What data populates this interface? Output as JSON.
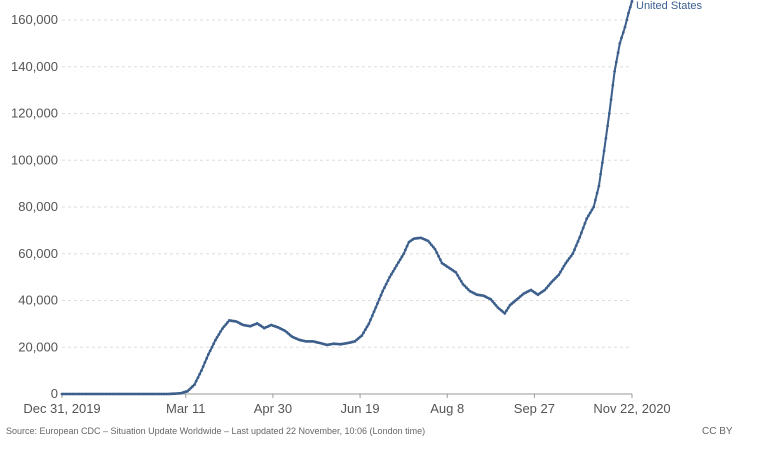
{
  "colors": {
    "series": "#3d5f8c",
    "grid": "#dddddd",
    "axis": "#999999"
  },
  "chart_data": {
    "type": "line",
    "grid": true,
    "ylim": [
      0,
      160000
    ],
    "xlim": [
      "2019-12-31",
      "2020-11-22"
    ],
    "y_ticks": [
      0,
      20000,
      40000,
      60000,
      80000,
      100000,
      120000,
      140000,
      160000
    ],
    "y_tick_labels": [
      "0",
      "20,000",
      "40,000",
      "60,000",
      "80,000",
      "100,000",
      "120,000",
      "140,000",
      "160,000"
    ],
    "x_ticks": [
      "2019-12-31",
      "2020-03-11",
      "2020-04-30",
      "2020-06-19",
      "2020-08-08",
      "2020-09-27",
      "2020-11-22"
    ],
    "x_tick_labels": [
      "Dec 31, 2019",
      "Mar 11",
      "Apr 30",
      "Jun 19",
      "Aug 8",
      "Sep 27",
      "Nov 22, 2020"
    ],
    "series": [
      {
        "name": "United States",
        "points": [
          [
            "2019-12-31",
            0
          ],
          [
            "2020-01-20",
            0
          ],
          [
            "2020-02-15",
            0
          ],
          [
            "2020-03-01",
            0
          ],
          [
            "2020-03-08",
            300
          ],
          [
            "2020-03-12",
            1200
          ],
          [
            "2020-03-16",
            4000
          ],
          [
            "2020-03-20",
            10000
          ],
          [
            "2020-03-24",
            17000
          ],
          [
            "2020-03-28",
            23000
          ],
          [
            "2020-04-01",
            28000
          ],
          [
            "2020-04-05",
            31500
          ],
          [
            "2020-04-09",
            31000
          ],
          [
            "2020-04-13",
            29500
          ],
          [
            "2020-04-17",
            29000
          ],
          [
            "2020-04-21",
            30200
          ],
          [
            "2020-04-25",
            28200
          ],
          [
            "2020-04-29",
            29500
          ],
          [
            "2020-05-03",
            28500
          ],
          [
            "2020-05-07",
            27000
          ],
          [
            "2020-05-11",
            24500
          ],
          [
            "2020-05-15",
            23200
          ],
          [
            "2020-05-19",
            22500
          ],
          [
            "2020-05-23",
            22500
          ],
          [
            "2020-05-27",
            21800
          ],
          [
            "2020-05-31",
            21000
          ],
          [
            "2020-06-04",
            21500
          ],
          [
            "2020-06-08",
            21300
          ],
          [
            "2020-06-12",
            21800
          ],
          [
            "2020-06-16",
            22500
          ],
          [
            "2020-06-20",
            25000
          ],
          [
            "2020-06-24",
            30000
          ],
          [
            "2020-06-28",
            37000
          ],
          [
            "2020-07-02",
            44000
          ],
          [
            "2020-07-06",
            50000
          ],
          [
            "2020-07-10",
            55000
          ],
          [
            "2020-07-14",
            60000
          ],
          [
            "2020-07-17",
            65000
          ],
          [
            "2020-07-20",
            66500
          ],
          [
            "2020-07-24",
            66800
          ],
          [
            "2020-07-28",
            65500
          ],
          [
            "2020-08-01",
            62000
          ],
          [
            "2020-08-05",
            56000
          ],
          [
            "2020-08-09",
            54000
          ],
          [
            "2020-08-13",
            52000
          ],
          [
            "2020-08-17",
            47000
          ],
          [
            "2020-08-21",
            44000
          ],
          [
            "2020-08-25",
            42500
          ],
          [
            "2020-08-29",
            42000
          ],
          [
            "2020-09-02",
            40500
          ],
          [
            "2020-09-06",
            37000
          ],
          [
            "2020-09-10",
            34500
          ],
          [
            "2020-09-13",
            38000
          ],
          [
            "2020-09-17",
            40500
          ],
          [
            "2020-09-21",
            43000
          ],
          [
            "2020-09-25",
            44500
          ],
          [
            "2020-09-29",
            42500
          ],
          [
            "2020-10-03",
            44500
          ],
          [
            "2020-10-07",
            48000
          ],
          [
            "2020-10-11",
            51000
          ],
          [
            "2020-10-15",
            56000
          ],
          [
            "2020-10-19",
            60000
          ],
          [
            "2020-10-23",
            67000
          ],
          [
            "2020-10-27",
            75000
          ],
          [
            "2020-10-31",
            80000
          ],
          [
            "2020-11-03",
            89000
          ],
          [
            "2020-11-06",
            104000
          ],
          [
            "2020-11-09",
            120000
          ],
          [
            "2020-11-12",
            138000
          ],
          [
            "2020-11-15",
            150000
          ],
          [
            "2020-11-18",
            157000
          ],
          [
            "2020-11-20",
            163000
          ],
          [
            "2020-11-22",
            168000
          ]
        ]
      }
    ]
  },
  "footer": {
    "source": "Source: European CDC – Situation Update Worldwide – Last updated 22 November, 10:06 (London time)",
    "license": "CC BY"
  }
}
